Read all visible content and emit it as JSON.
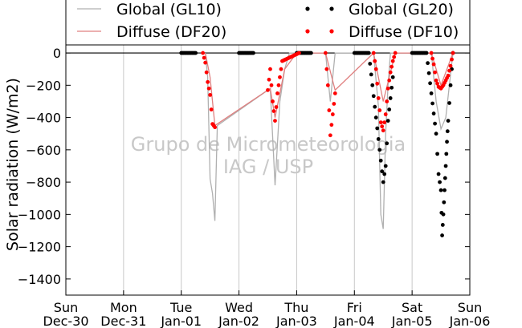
{
  "chart_data": {
    "type": "scatter",
    "ylabel": "Solar radiation (W/m2)",
    "ylim": [
      -1500,
      50
    ],
    "yticks": [
      0,
      -200,
      -400,
      -600,
      -800,
      -1000,
      -1200,
      -1400
    ],
    "xlim": [
      "2012-12-30",
      "2013-01-06"
    ],
    "xticks": [
      {
        "day": "Sun",
        "date": "Dec-30"
      },
      {
        "day": "Mon",
        "date": "Dec-31"
      },
      {
        "day": "Tue",
        "date": "Jan-01"
      },
      {
        "day": "Wed",
        "date": "Jan-02"
      },
      {
        "day": "Thu",
        "date": "Jan-03"
      },
      {
        "day": "Fri",
        "date": "Jan-04"
      },
      {
        "day": "Sat",
        "date": "Jan-05"
      },
      {
        "day": "Sun",
        "date": "Jan-06"
      }
    ],
    "grid": "vertical",
    "legend_position": "top",
    "watermark": [
      "Grupo de Micrometeorologia",
      "IAG / USP"
    ],
    "colors": {
      "GL10": "#b0b0b0",
      "DF20": "#e08080",
      "GL20": "#000000",
      "DF10": "#ff0000"
    },
    "series": [
      {
        "name": "Global (GL10)",
        "style": "line",
        "x": [
          "2013-01-01 10:00",
          "2013-01-01 11:00",
          "2013-01-01 12:00",
          "2013-01-01 13:00",
          "2013-01-01 14:00",
          "2013-01-01 15:00",
          "2013-01-02 13:00",
          "2013-01-02 14:00",
          "2013-01-02 15:00",
          "2013-01-02 17:00",
          "2013-01-02 19:00",
          "2013-01-02 21:00",
          "2013-01-03 00:00",
          "2013-01-03 12:00",
          "2013-01-03 14:00",
          "2013-01-03 16:00",
          "2013-01-04 08:00",
          "2013-01-04 10:00",
          "2013-01-04 11:00",
          "2013-01-04 12:00",
          "2013-01-04 13:00",
          "2013-01-04 14:00",
          "2013-01-04 15:00",
          "2013-01-04 17:00",
          "2013-01-05 08:00",
          "2013-01-05 10:00",
          "2013-01-05 12:00",
          "2013-01-05 14:00",
          "2013-01-05 17:00"
        ],
        "y": [
          0,
          -150,
          -780,
          -870,
          -1040,
          -450,
          -220,
          -520,
          -820,
          -300,
          -100,
          0,
          0,
          0,
          -300,
          0,
          0,
          -330,
          -1000,
          -1090,
          -500,
          -200,
          0,
          0,
          0,
          -300,
          -470,
          -400,
          0
        ]
      },
      {
        "name": "Diffuse (DF20)",
        "style": "line",
        "x": [
          "2013-01-01 10:00",
          "2013-01-01 12:00",
          "2013-01-01 14:00",
          "2013-01-02 13:00",
          "2013-01-02 15:00",
          "2013-01-02 19:00",
          "2013-01-03 00:00",
          "2013-01-03 12:00",
          "2013-01-03 16:00",
          "2013-01-04 08:00",
          "2013-01-04 12:00",
          "2013-01-04 17:00",
          "2013-01-05 08:00",
          "2013-01-05 12:00",
          "2013-01-05 17:00"
        ],
        "y": [
          0,
          -150,
          -450,
          -220,
          -400,
          -100,
          0,
          0,
          -230,
          0,
          -300,
          0,
          0,
          -200,
          0
        ]
      },
      {
        "name": "Global (GL20)",
        "style": "markers",
        "x": [
          "2013-01-01 00:00",
          "2013-01-01 06:00",
          "2013-01-02 00:00",
          "2013-01-02 06:00",
          "2013-01-03 00:00",
          "2013-01-03 06:00",
          "2013-01-04 00:00",
          "2013-01-04 06:00",
          "2013-01-04 12:00",
          "2013-01-04 13:00",
          "2013-01-04 14:00",
          "2013-01-04 15:00",
          "2013-01-04 16:00",
          "2013-01-05 00:00",
          "2013-01-05 06:00",
          "2013-01-05 10:00",
          "2013-01-05 11:00",
          "2013-01-05 12:00",
          "2013-01-05 12:30",
          "2013-01-05 13:00",
          "2013-01-05 13:30",
          "2013-01-05 14:00",
          "2013-01-05 14:30",
          "2013-01-05 15:00",
          "2013-01-05 16:00",
          "2013-01-05 17:00"
        ],
        "y": [
          0,
          0,
          0,
          0,
          0,
          0,
          0,
          0,
          -800,
          -700,
          -420,
          -280,
          -150,
          0,
          0,
          -500,
          -750,
          -850,
          -1130,
          -1000,
          -850,
          -700,
          -550,
          -420,
          -200,
          0
        ]
      },
      {
        "name": "Diffuse (DF10)",
        "style": "markers",
        "x": [
          "2013-01-01 09:00",
          "2013-01-01 10:00",
          "2013-01-01 11:00",
          "2013-01-01 12:00",
          "2013-01-01 13:00",
          "2013-01-01 14:00",
          "2013-01-02 12:00",
          "2013-01-02 13:00",
          "2013-01-02 14:00",
          "2013-01-02 15:00",
          "2013-01-02 16:00",
          "2013-01-02 17:00",
          "2013-01-02 18:00",
          "2013-01-03 01:00",
          "2013-01-03 12:00",
          "2013-01-03 13:00",
          "2013-01-03 14:00",
          "2013-01-03 16:00",
          "2013-01-04 08:00",
          "2013-01-04 09:00",
          "2013-01-04 10:00",
          "2013-01-04 11:00",
          "2013-01-04 12:00",
          "2013-01-04 13:00",
          "2013-01-04 14:00",
          "2013-01-04 15:00",
          "2013-01-04 16:00",
          "2013-01-04 17:00",
          "2013-01-05 08:00",
          "2013-01-05 09:00",
          "2013-01-05 10:00",
          "2013-01-05 11:00",
          "2013-01-05 12:00",
          "2013-01-05 13:00",
          "2013-01-05 14:00",
          "2013-01-05 15:00",
          "2013-01-05 16:00",
          "2013-01-05 17:00"
        ],
        "y": [
          0,
          -60,
          -180,
          -260,
          -440,
          -460,
          -230,
          -100,
          -300,
          -420,
          -250,
          -150,
          -50,
          0,
          0,
          -200,
          -510,
          -250,
          0,
          -100,
          -280,
          -430,
          -480,
          -380,
          -220,
          -120,
          -50,
          0,
          0,
          -70,
          -170,
          -210,
          -220,
          -200,
          -170,
          -140,
          -80,
          0
        ]
      }
    ]
  }
}
